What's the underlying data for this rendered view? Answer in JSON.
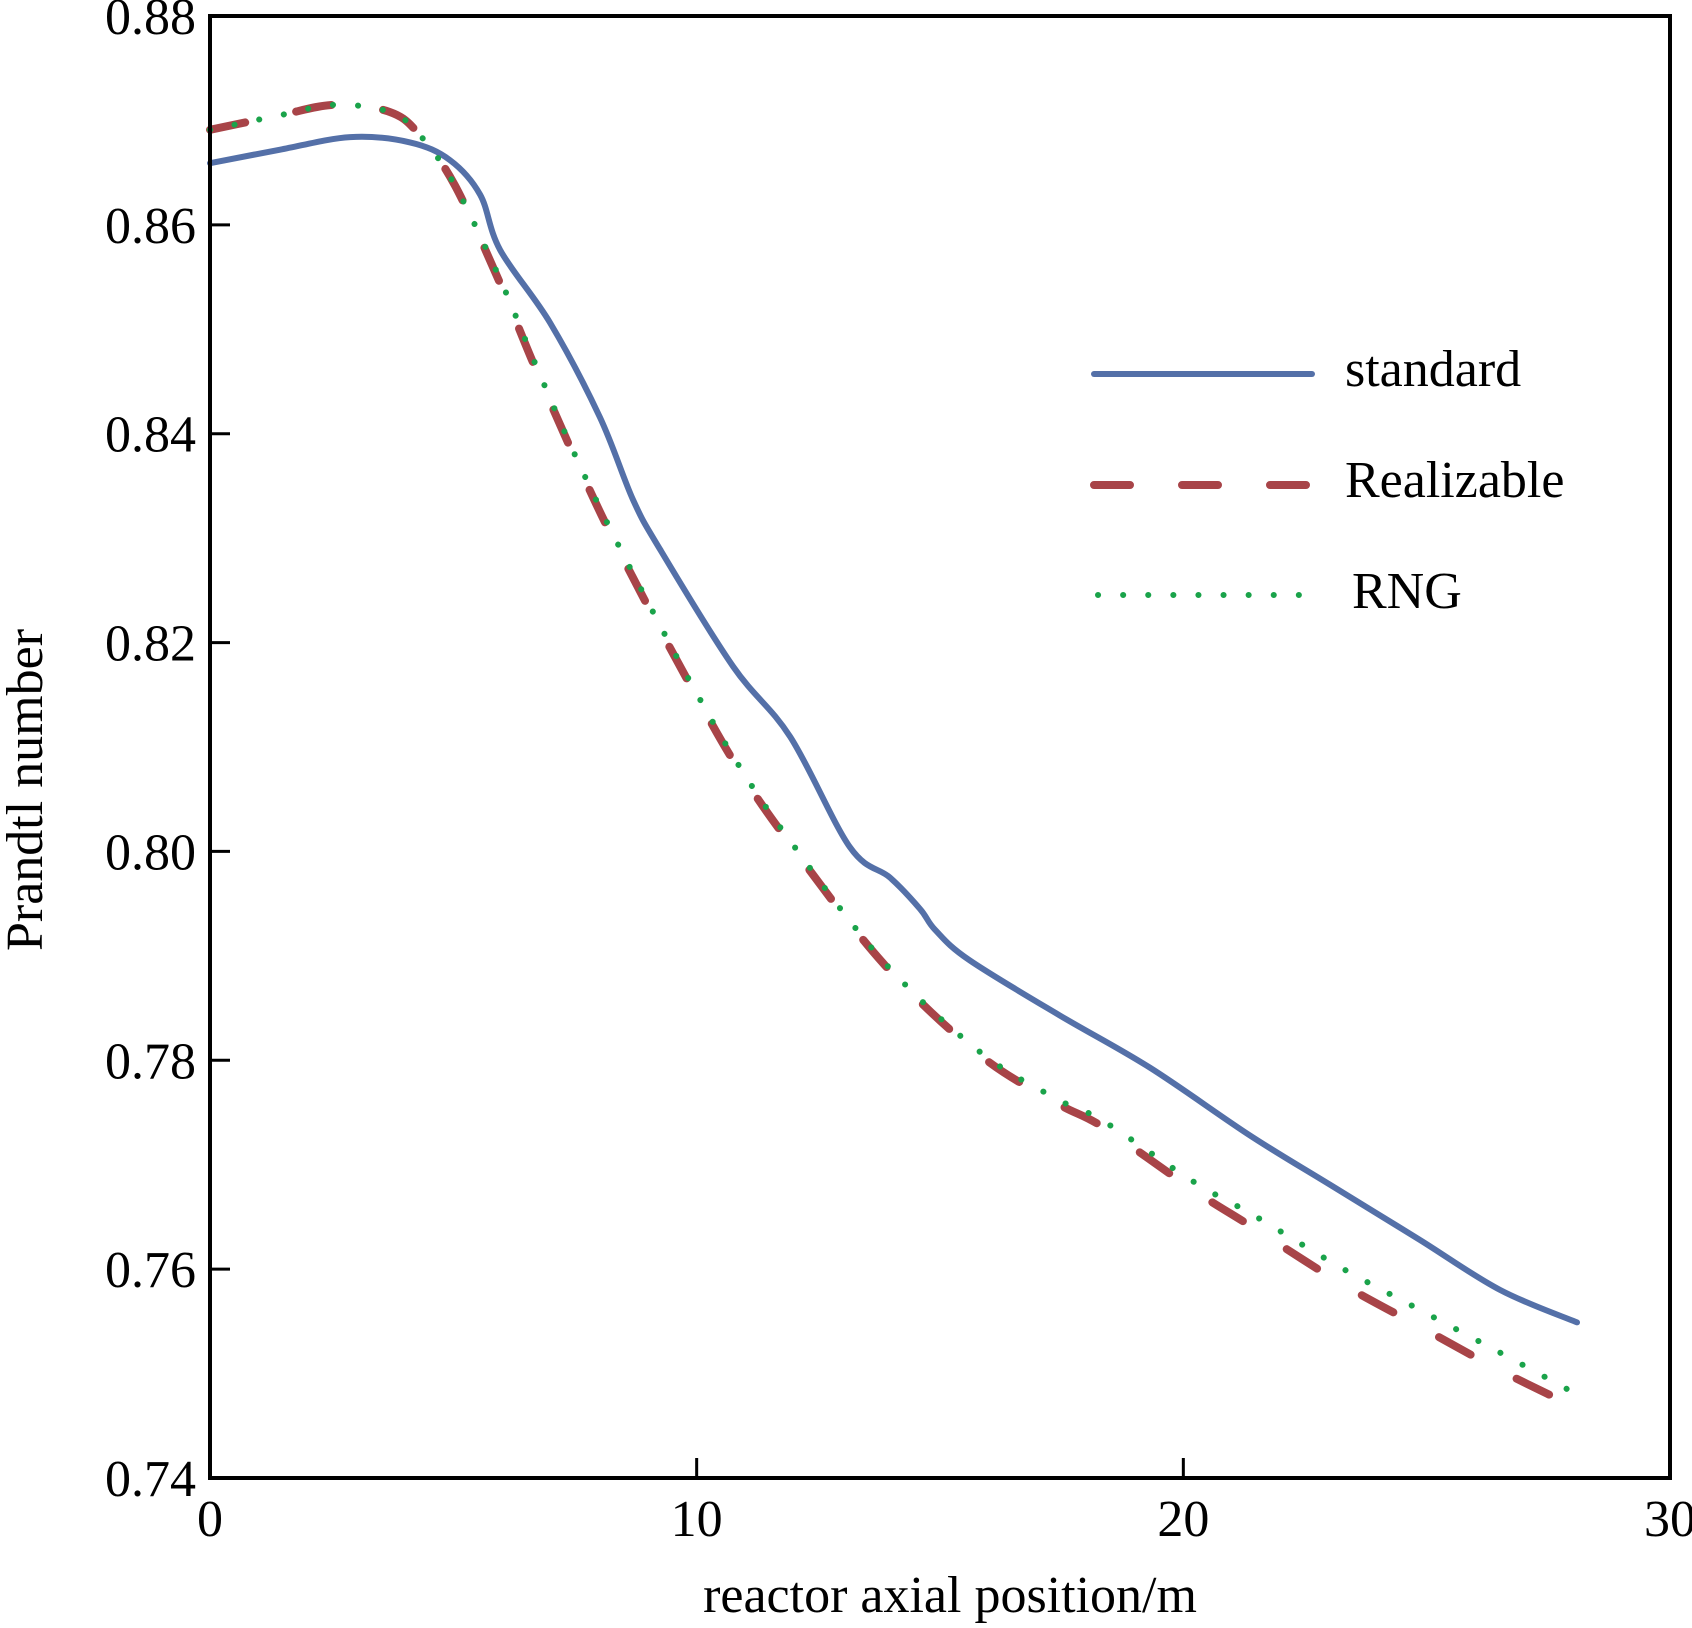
{
  "chart_data": {
    "type": "line",
    "title": "",
    "xlabel": "reactor axial position/m",
    "ylabel": "Prandtl number",
    "xlim": [
      0,
      30
    ],
    "ylim": [
      0.74,
      0.88
    ],
    "xticks": [
      0,
      10,
      20,
      30
    ],
    "xtick_labels": [
      "0",
      "10",
      "20",
      "30"
    ],
    "yticks": [
      0.74,
      0.76,
      0.78,
      0.8,
      0.82,
      0.84,
      0.86,
      0.88
    ],
    "ytick_labels": [
      "0.74",
      "0.76",
      "0.78",
      "0.80",
      "0.82",
      "0.84",
      "0.86",
      "0.88"
    ],
    "grid": false,
    "legend_position": "upper-right",
    "series": [
      {
        "name": "standard",
        "style": "solid",
        "color": "#5470a8",
        "x": [
          0,
          1.44,
          2.88,
          4.11,
          4.93,
          5.55,
          5.96,
          6.99,
          8.01,
          8.69,
          9.25,
          10.75,
          11.92,
          13.15,
          13.97,
          14.59,
          14.9,
          15.6,
          17.46,
          19.31,
          21.37,
          23.01,
          24.86,
          26.51,
          28.09
        ],
        "y": [
          0.8659,
          0.8672,
          0.8684,
          0.8679,
          0.8662,
          0.8629,
          0.8576,
          0.8506,
          0.8416,
          0.8337,
          0.8289,
          0.8177,
          0.811,
          0.8004,
          0.7975,
          0.7945,
          0.7925,
          0.7896,
          0.7843,
          0.7793,
          0.7728,
          0.7681,
          0.7628,
          0.758,
          0.7549
        ]
      },
      {
        "name": "Realizable",
        "style": "dashed",
        "color": "#a84448",
        "x": [
          0,
          1.44,
          2.57,
          3.7,
          4.31,
          5.03,
          5.96,
          6.64,
          7.4,
          8.16,
          9.04,
          9.92,
          10.83,
          11.86,
          13.83,
          15.82,
          17.4,
          18.35,
          20.2,
          21.43,
          23.22,
          24.86,
          26.51,
          28.09
        ],
        "y": [
          0.8691,
          0.8705,
          0.8715,
          0.8708,
          0.8686,
          0.8638,
          0.8544,
          0.8468,
          0.8387,
          0.8311,
          0.8231,
          0.8155,
          0.8081,
          0.8011,
          0.7893,
          0.7805,
          0.7759,
          0.7736,
          0.7676,
          0.764,
          0.7587,
          0.7545,
          0.7503,
          0.7467
        ]
      },
      {
        "name": "RNG",
        "style": "dotted",
        "color": "#1aa34a",
        "x": [
          0,
          1.44,
          2.57,
          3.7,
          4.31,
          5.03,
          5.96,
          6.64,
          7.4,
          8.16,
          9.04,
          9.92,
          10.83,
          11.86,
          13.83,
          15.82,
          17.4,
          18.35,
          20.2,
          21.43,
          23.22,
          24.86,
          26.51,
          28.09
        ],
        "y": [
          0.8691,
          0.8705,
          0.8715,
          0.8708,
          0.8686,
          0.8638,
          0.8548,
          0.8472,
          0.839,
          0.8315,
          0.8235,
          0.8158,
          0.8085,
          0.8014,
          0.7895,
          0.7808,
          0.7763,
          0.7742,
          0.7684,
          0.7652,
          0.7602,
          0.7561,
          0.752,
          0.748
        ]
      }
    ]
  }
}
